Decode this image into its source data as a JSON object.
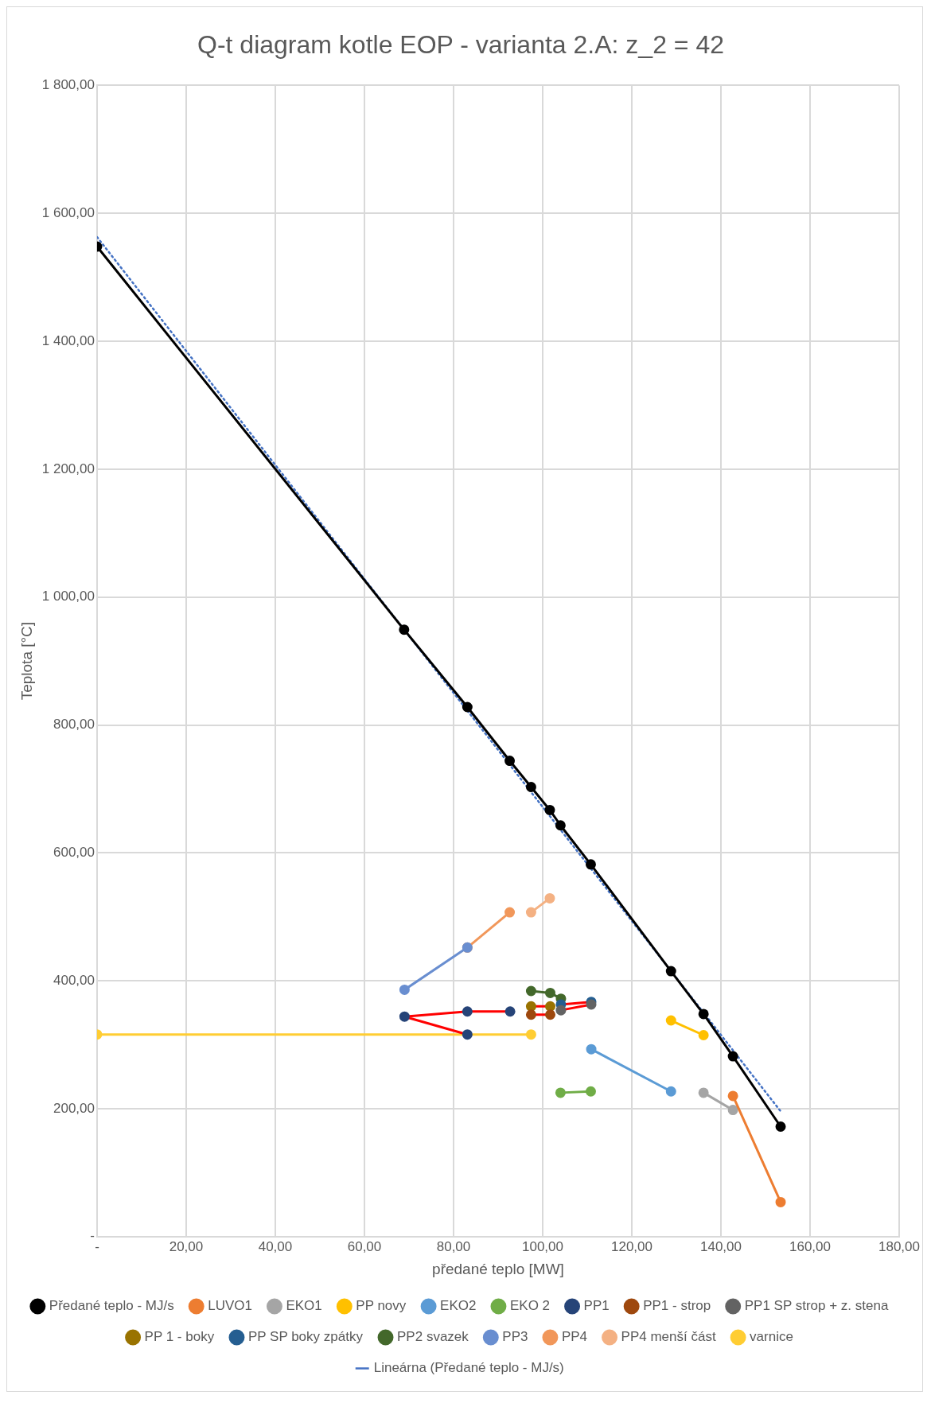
{
  "chart_data": {
    "type": "line",
    "title": "Q-t diagram kotle EOP - varianta 2.A: z_2 = 42",
    "xlabel": "předané teplo [MW]",
    "ylabel": "Teplota [°C]",
    "xlim": [
      0,
      180
    ],
    "xticks": [
      {
        "value": 0,
        "label": "-"
      },
      {
        "value": 20,
        "label": "20,00"
      },
      {
        "value": 40,
        "label": "40,00"
      },
      {
        "value": 60,
        "label": "60,00"
      },
      {
        "value": 80,
        "label": "80,00"
      },
      {
        "value": 100,
        "label": "100,00"
      },
      {
        "value": 120,
        "label": "120,00"
      },
      {
        "value": 140,
        "label": "140,00"
      },
      {
        "value": 160,
        "label": "160,00"
      },
      {
        "value": 180,
        "label": "180,00"
      }
    ],
    "ylim": [
      0,
      1800
    ],
    "yticks": [
      {
        "value": 0,
        "label": "-"
      },
      {
        "value": 200,
        "label": "200,00"
      },
      {
        "value": 400,
        "label": "400,00"
      },
      {
        "value": 600,
        "label": "600,00"
      },
      {
        "value": 800,
        "label": "800,00"
      },
      {
        "value": 1000,
        "label": "1 000,00"
      },
      {
        "value": 1200,
        "label": "1 200,00"
      },
      {
        "value": 1400,
        "label": "1 400,00"
      },
      {
        "value": 1600,
        "label": "1 600,00"
      },
      {
        "value": 1800,
        "label": "1 800,00"
      }
    ],
    "grid": true,
    "legend": "bottom",
    "marker": "circle",
    "line_style": "solid",
    "series": [
      {
        "name": "Předané teplo - MJ/s",
        "color": "#000000",
        "x": [
          0,
          68.9,
          83.1,
          92.6,
          97.4,
          101.6,
          104,
          110.8,
          128.8,
          136.1,
          142.7,
          153.4
        ],
        "values": [
          1548,
          949,
          828,
          744,
          703,
          667,
          643,
          582,
          415,
          348,
          282,
          172
        ]
      },
      {
        "name": "LUVO1",
        "color": "#ed7d31",
        "x": [
          142.7,
          153.4
        ],
        "values": [
          220,
          54
        ]
      },
      {
        "name": "EKO1",
        "color": "#a5a5a5",
        "x": [
          136.1,
          142.7
        ],
        "values": [
          225,
          198
        ]
      },
      {
        "name": "PP novy",
        "color": "#ffc000",
        "x": [
          128.8,
          136.1
        ],
        "values": [
          338,
          315
        ]
      },
      {
        "name": "EKO2",
        "color": "#5b9bd5",
        "x": [
          110.9,
          128.8
        ],
        "values": [
          293,
          227
        ]
      },
      {
        "name": "EKO 2",
        "color": "#70ad47",
        "x": [
          104,
          110.8
        ],
        "values": [
          225,
          227
        ]
      },
      {
        "name": "PP1",
        "color": "#ff0000",
        "colors": [
          "#264478",
          "#264478",
          "#264478",
          "#264478"
        ],
        "x": [
          83.1,
          69,
          83.1,
          92.7
        ],
        "values": [
          316,
          344,
          352,
          352
        ]
      },
      {
        "name": "PP1 - strop",
        "color": "#ff0000",
        "colors": [
          "#9e480e",
          "#9e480e"
        ],
        "x": [
          97.4,
          101.7
        ],
        "values": [
          347,
          347
        ]
      },
      {
        "name": "PP1 SP strop + z. stena",
        "color": "#ff0000",
        "colors": [
          "#636363",
          "#636363"
        ],
        "x": [
          104.1,
          110.9
        ],
        "values": [
          354,
          363
        ]
      },
      {
        "name": "PP 1 - boky",
        "color": "#ff0000",
        "colors": [
          "#997300",
          "#997300"
        ],
        "x": [
          97.4,
          101.7
        ],
        "values": [
          360,
          360
        ]
      },
      {
        "name": "PP SP boky zpátky",
        "color": "#ff0000",
        "colors": [
          "#255e91",
          "#255e91"
        ],
        "x": [
          104.1,
          110.9
        ],
        "values": [
          363,
          367
        ]
      },
      {
        "name": "PP2 svazek",
        "color": "#43682b",
        "x": [
          97.4,
          101.7,
          104.1
        ],
        "values": [
          384,
          381,
          372
        ]
      },
      {
        "name": "PP3",
        "color": "#698ed0",
        "x": [
          69,
          83.1
        ],
        "values": [
          386,
          452
        ]
      },
      {
        "name": "PP4",
        "color": "#f1975a",
        "x": [
          83.1,
          92.6
        ],
        "values": [
          452,
          507
        ]
      },
      {
        "name": "PP4 menší část",
        "color": "#f4b183",
        "x": [
          97.4,
          101.6
        ],
        "values": [
          507,
          529
        ]
      },
      {
        "name": "varnice",
        "color": "#ffcd33",
        "x": [
          0,
          97.4
        ],
        "values": [
          316,
          316
        ]
      },
      {
        "name": "Lineárna (Předané teplo - MJ/s)",
        "color": "#4472c4",
        "marker": "none",
        "line_style": "dotted",
        "x": [
          0,
          153.4
        ],
        "values": [
          1563,
          196
        ]
      }
    ]
  }
}
